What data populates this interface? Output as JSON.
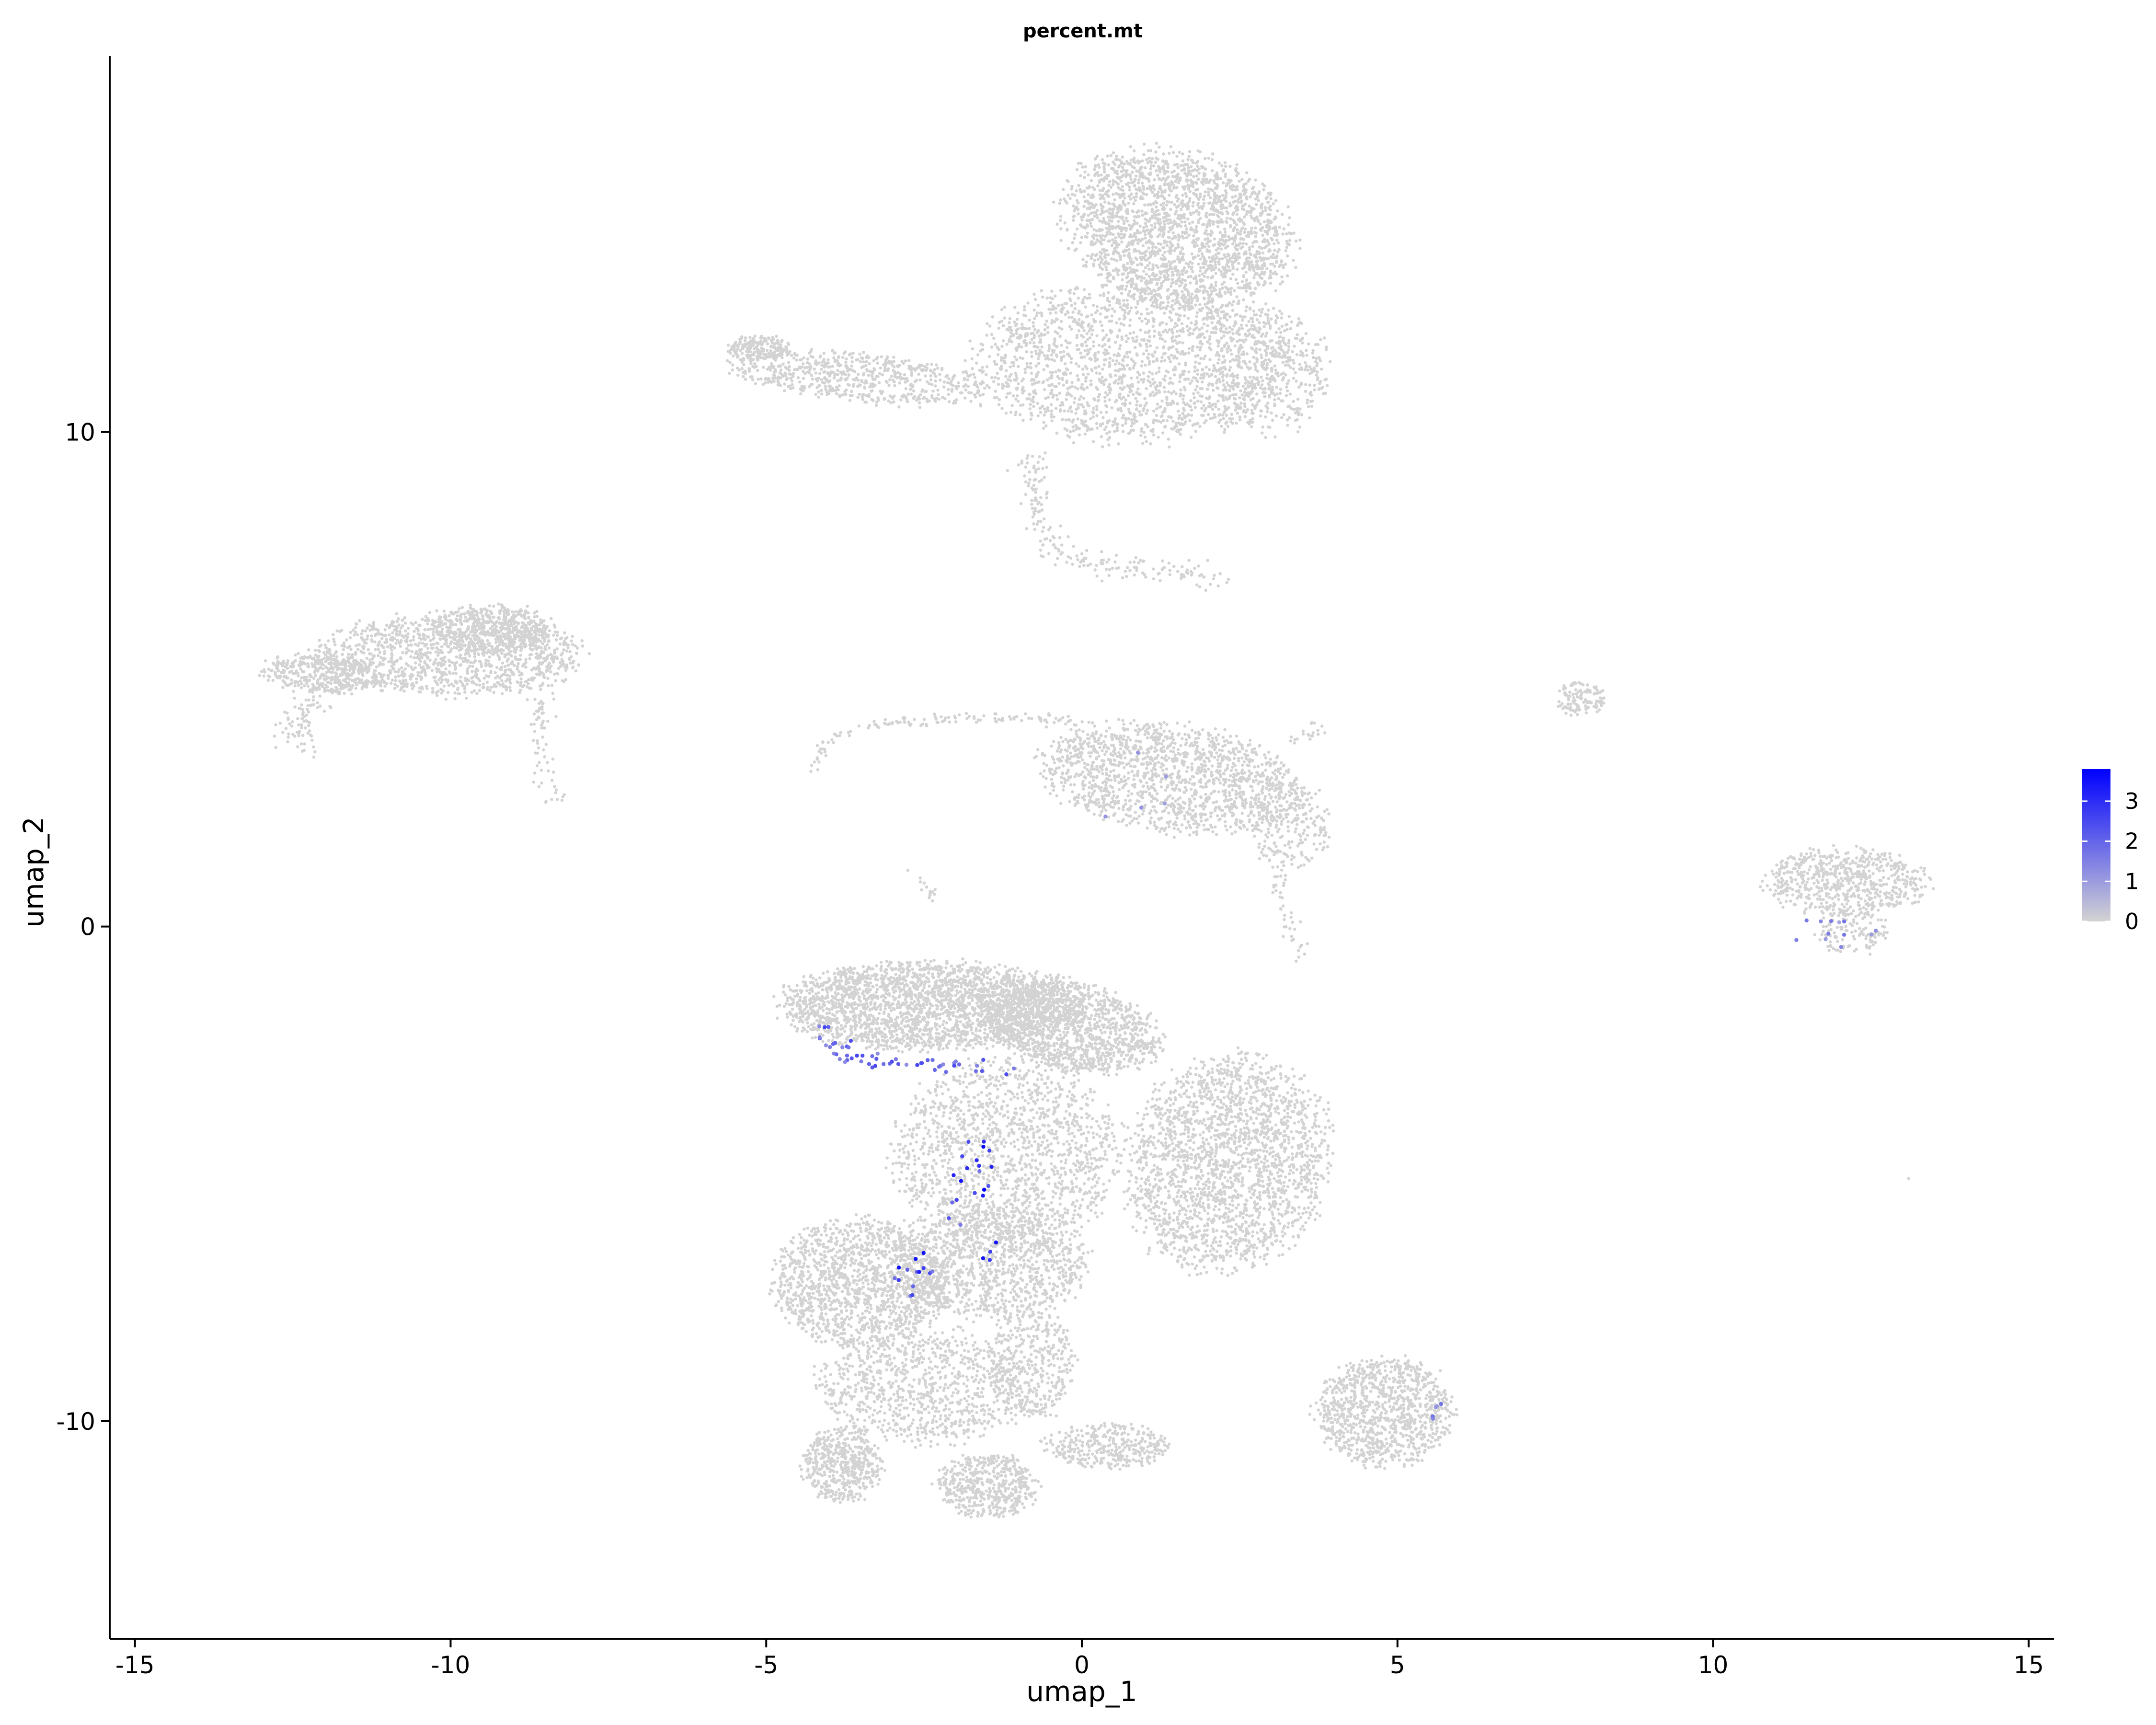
{
  "chart_data": {
    "type": "scatter",
    "title": "percent.mt",
    "xlabel": "umap_1",
    "ylabel": "umap_2",
    "xlim": [
      -15.4,
      15.4
    ],
    "ylim": [
      -14.4,
      17.6
    ],
    "x_ticks": [
      -15,
      -10,
      -5,
      0,
      5,
      10,
      15
    ],
    "x_tick_labels": [
      "-15",
      "-10",
      "-5",
      "0",
      "5",
      "10",
      "15"
    ],
    "y_ticks": [
      -10,
      0,
      10
    ],
    "y_tick_labels": [
      "-10",
      "0",
      "10"
    ],
    "grid": false,
    "legend": {
      "placement": "right",
      "type": "colorbar",
      "variable": "percent.mt",
      "range": [
        0,
        3.8
      ],
      "ticks": [
        0,
        1,
        2,
        3
      ],
      "tick_labels": [
        "0",
        "1",
        "2",
        "3"
      ],
      "color_low": "#d3d3d3",
      "color_high": "#0000ff"
    },
    "colors": {
      "point_default": "#d3d3d3",
      "point_high": "#0000ff"
    },
    "series": [
      {
        "clusters": [
          {
            "shape": "blob",
            "cx": 1.5,
            "cy": 14.1,
            "rx": 1.9,
            "ry": 1.5,
            "n": 2200,
            "rot": -30
          },
          {
            "shape": "blob",
            "cx": 0.8,
            "cy": 11.4,
            "rx": 2.5,
            "ry": 1.6,
            "n": 1800,
            "rot": 0
          },
          {
            "shape": "blob",
            "cx": 3.0,
            "cy": 11.2,
            "rx": 0.9,
            "ry": 1.3,
            "n": 400,
            "rot": 0
          },
          {
            "shape": "blob",
            "cx": -3.5,
            "cy": 11.1,
            "rx": 2.2,
            "ry": 0.5,
            "n": 650,
            "rot": -8
          },
          {
            "shape": "blob",
            "cx": -5.1,
            "cy": 11.7,
            "rx": 0.5,
            "ry": 0.25,
            "n": 180,
            "rot": 0
          },
          {
            "shape": "arc",
            "pts": [
              [
                -0.8,
                9.5
              ],
              [
                -0.7,
                8.4
              ],
              [
                -0.5,
                7.6
              ],
              [
                0.3,
                7.3
              ],
              [
                1.5,
                7.2
              ],
              [
                2.2,
                7.0
              ]
            ],
            "n": 200,
            "w": 0.12
          },
          {
            "shape": "blob",
            "cx": -10.0,
            "cy": 5.5,
            "rx": 2.1,
            "ry": 0.85,
            "n": 1200,
            "rot": 0
          },
          {
            "shape": "blob",
            "cx": -12.0,
            "cy": 5.1,
            "rx": 1.0,
            "ry": 0.4,
            "n": 400,
            "rot": -5
          },
          {
            "shape": "blob",
            "cx": -9.3,
            "cy": 6.0,
            "rx": 1.0,
            "ry": 0.5,
            "n": 500,
            "rot": 0
          },
          {
            "shape": "arc",
            "pts": [
              [
                -12.1,
                4.6
              ],
              [
                -12.5,
                4.0
              ],
              [
                -12.3,
                3.6
              ]
            ],
            "n": 80,
            "w": 0.15
          },
          {
            "shape": "arc",
            "pts": [
              [
                -8.6,
                4.9
              ],
              [
                -8.6,
                3.5
              ],
              [
                -8.4,
                2.7
              ],
              [
                -8.2,
                2.5
              ]
            ],
            "n": 70,
            "w": 0.1
          },
          {
            "shape": "arc",
            "pts": [
              [
                -4.3,
                3.1
              ],
              [
                -4.0,
                3.8
              ],
              [
                -3.2,
                4.1
              ],
              [
                -2.0,
                4.2
              ],
              [
                -0.5,
                4.2
              ],
              [
                0.0,
                4.1
              ]
            ],
            "n": 130,
            "w": 0.06
          },
          {
            "shape": "blob",
            "cx": 1.4,
            "cy": 3.0,
            "rx": 2.1,
            "ry": 1.1,
            "n": 1500,
            "rot": -10
          },
          {
            "shape": "blob",
            "cx": 3.3,
            "cy": 2.1,
            "rx": 0.65,
            "ry": 0.9,
            "n": 220,
            "rot": 0
          },
          {
            "shape": "arc",
            "pts": [
              [
                3.0,
                1.5
              ],
              [
                3.2,
                0.5
              ],
              [
                3.4,
                -0.6
              ]
            ],
            "n": 50,
            "w": 0.1
          },
          {
            "shape": "arc",
            "pts": [
              [
                3.3,
                3.7
              ],
              [
                3.8,
                4.0
              ]
            ],
            "n": 20,
            "w": 0.08
          },
          {
            "shape": "blob",
            "cx": 7.9,
            "cy": 4.6,
            "rx": 0.4,
            "ry": 0.35,
            "n": 120,
            "rot": 0
          },
          {
            "shape": "blob",
            "cx": 12.1,
            "cy": 0.9,
            "rx": 1.3,
            "ry": 0.7,
            "n": 650,
            "rot": 0
          },
          {
            "shape": "blob",
            "cx": 12.2,
            "cy": -0.1,
            "rx": 0.55,
            "ry": 0.5,
            "n": 120,
            "rot": 0
          },
          {
            "shape": "arc",
            "pts": [
              [
                -2.7,
                1.2
              ],
              [
                -2.5,
                0.9
              ],
              [
                -2.3,
                0.6
              ]
            ],
            "n": 15,
            "w": 0.05
          },
          {
            "shape": "blob",
            "cx": -2.5,
            "cy": -1.6,
            "rx": 2.3,
            "ry": 0.9,
            "n": 2400,
            "rot": 0
          },
          {
            "shape": "blob",
            "cx": -0.2,
            "cy": -2.0,
            "rx": 1.5,
            "ry": 0.9,
            "n": 1400,
            "rot": -20
          },
          {
            "shape": "blob",
            "cx": 2.3,
            "cy": -4.8,
            "rx": 1.6,
            "ry": 2.2,
            "n": 2200,
            "rot": -10
          },
          {
            "shape": "blob",
            "cx": -1.2,
            "cy": -4.6,
            "rx": 1.8,
            "ry": 1.9,
            "n": 1500,
            "rot": 0
          },
          {
            "shape": "blob",
            "cx": -3.5,
            "cy": -7.2,
            "rx": 1.4,
            "ry": 1.3,
            "n": 1400,
            "rot": 0
          },
          {
            "shape": "blob",
            "cx": -1.5,
            "cy": -6.8,
            "rx": 1.6,
            "ry": 1.1,
            "n": 1200,
            "rot": 0
          },
          {
            "shape": "blob",
            "cx": -2.5,
            "cy": -9.3,
            "rx": 1.7,
            "ry": 1.2,
            "n": 900,
            "rot": 0
          },
          {
            "shape": "blob",
            "cx": -3.8,
            "cy": -10.9,
            "rx": 0.65,
            "ry": 0.75,
            "n": 500,
            "rot": 0
          },
          {
            "shape": "blob",
            "cx": -1.5,
            "cy": -11.3,
            "rx": 0.8,
            "ry": 0.65,
            "n": 500,
            "rot": 0
          },
          {
            "shape": "blob",
            "cx": 0.4,
            "cy": -10.5,
            "rx": 1.0,
            "ry": 0.45,
            "n": 350,
            "rot": 0
          },
          {
            "shape": "blob",
            "cx": -0.8,
            "cy": -8.8,
            "rx": 0.7,
            "ry": 1.2,
            "n": 400,
            "rot": 0
          },
          {
            "shape": "blob",
            "cx": 4.8,
            "cy": -9.8,
            "rx": 1.1,
            "ry": 1.1,
            "n": 1000,
            "rot": -15
          },
          {
            "shape": "blob",
            "cx": 13.1,
            "cy": -5.1,
            "rx": 0.02,
            "ry": 0.02,
            "n": 1,
            "rot": 0
          }
        ],
        "highlights": [
          {
            "shape": "arc",
            "pts": [
              [
                -4.2,
                -1.8
              ],
              [
                -4.0,
                -2.4
              ],
              [
                -3.4,
                -2.7
              ],
              [
                -2.6,
                -2.8
              ],
              [
                -1.8,
                -2.8
              ],
              [
                -1.2,
                -2.9
              ]
            ],
            "n": 55,
            "w": 0.1,
            "v": [
              1.2,
              2.6
            ]
          },
          {
            "shape": "blob",
            "cx": -1.6,
            "cy": -5.5,
            "rx": 0.5,
            "ry": 1.4,
            "n": 24,
            "rot": 0,
            "v": [
              1.5,
              3.8
            ]
          },
          {
            "shape": "blob",
            "cx": -2.6,
            "cy": -7.2,
            "rx": 0.5,
            "ry": 0.6,
            "n": 14,
            "rot": 0,
            "v": [
              1.5,
              3.6
            ]
          },
          {
            "shape": "blob",
            "cx": 12.0,
            "cy": -0.1,
            "rx": 0.7,
            "ry": 0.5,
            "n": 12,
            "rot": 0,
            "v": [
              0.8,
              1.8
            ]
          },
          {
            "shape": "arc",
            "pts": [
              [
                5.6,
                -9.2
              ],
              [
                5.6,
                -10.0
              ]
            ],
            "n": 5,
            "w": 0.05,
            "v": [
              1.0,
              2.0
            ]
          },
          {
            "shape": "blob",
            "cx": 1.0,
            "cy": 3.0,
            "rx": 1.5,
            "ry": 0.8,
            "n": 5,
            "rot": 0,
            "v": [
              0.6,
              1.2
            ]
          }
        ]
      }
    ]
  }
}
